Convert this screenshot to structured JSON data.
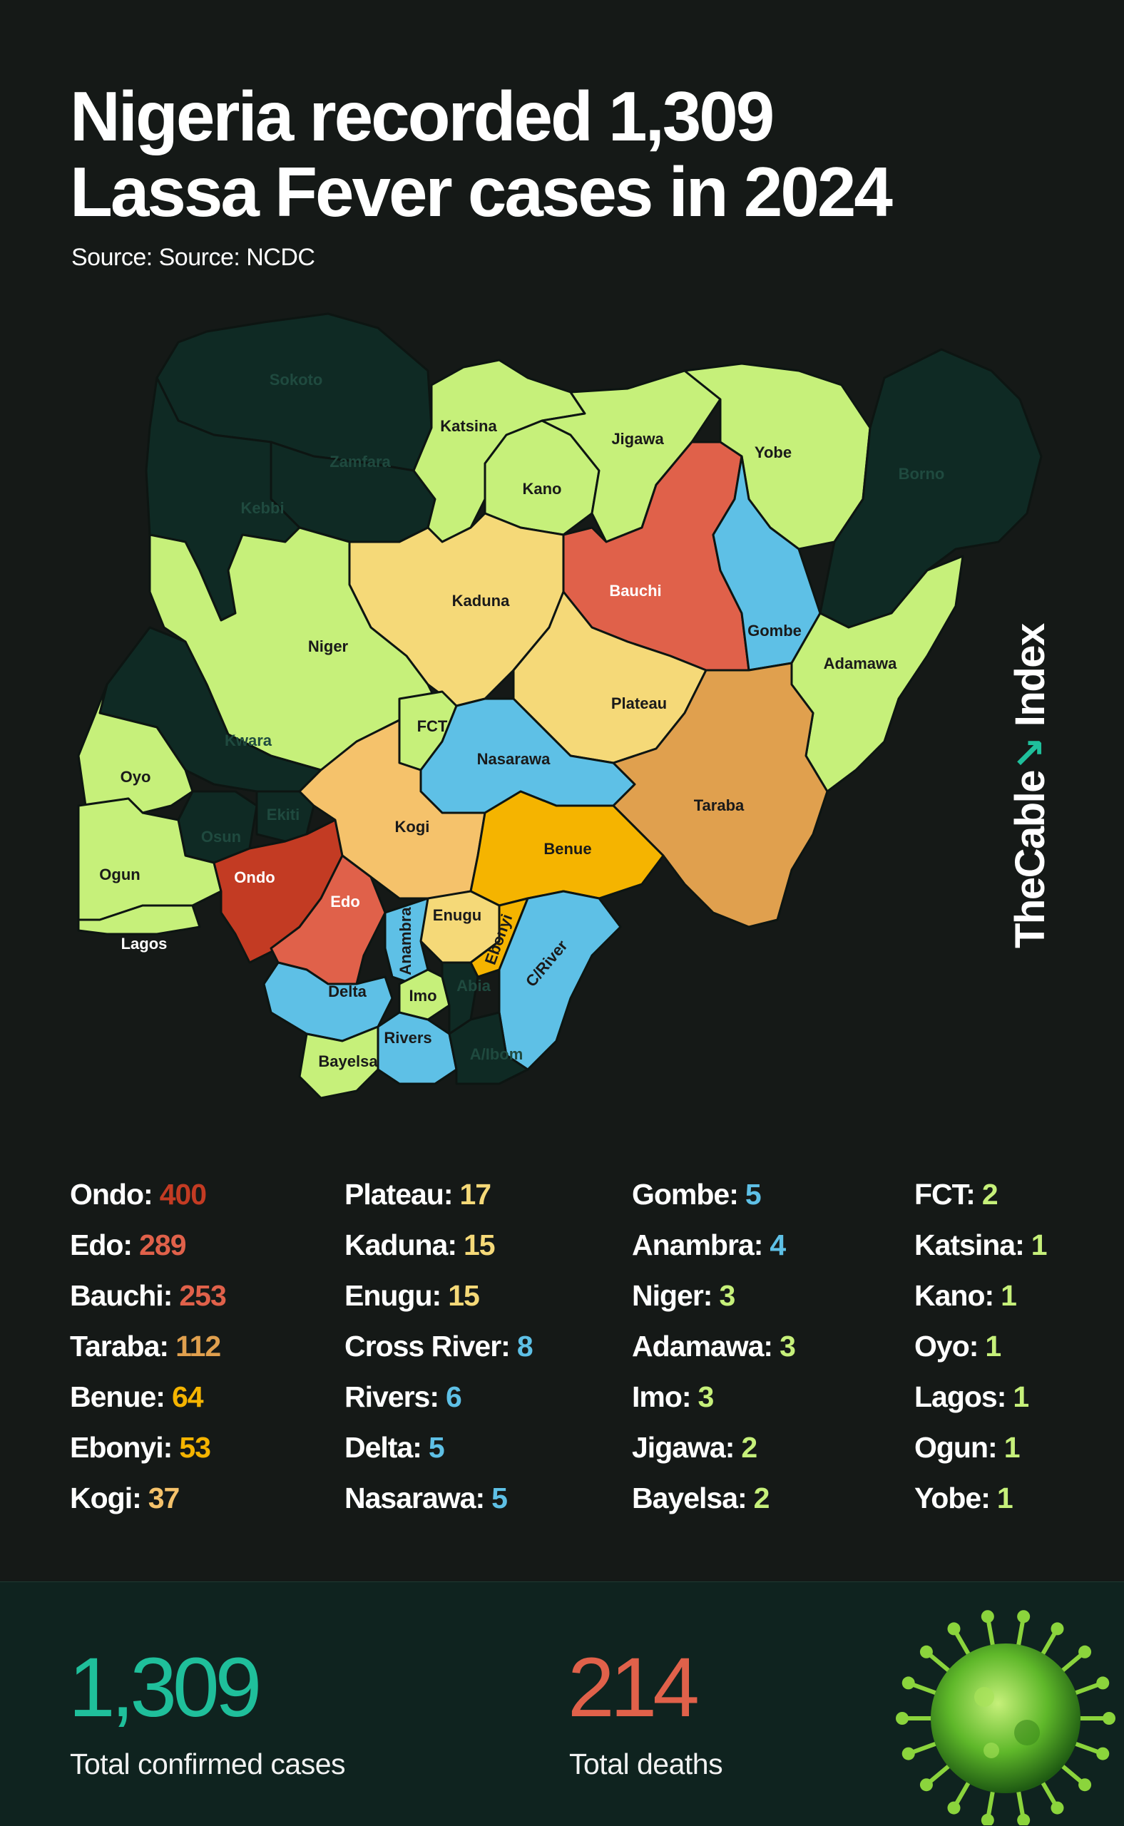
{
  "header": {
    "title_line1": "Nigeria recorded 1,309",
    "title_line2": "Lassa Fever cases in 2024",
    "source": "Source: Source: NCDC"
  },
  "brand": {
    "name": "TheCable",
    "suffix": "Index"
  },
  "colors": {
    "background": "#151917",
    "high": "#c33b23",
    "upper": "#e0614a",
    "orange": "#f5b400",
    "amber": "#e0a04e",
    "yellow": "#f5d978",
    "blue": "#5ec0e6",
    "green": "#c6f07a",
    "zero": "#0f2a24",
    "teal": "#1fbf9b"
  },
  "map": {
    "states": [
      {
        "name": "Sokoto",
        "cases": 0
      },
      {
        "name": "Zamfara",
        "cases": 0
      },
      {
        "name": "Kebbi",
        "cases": 0
      },
      {
        "name": "Borno",
        "cases": 0
      },
      {
        "name": "Katsina",
        "cases": 1
      },
      {
        "name": "Jigawa",
        "cases": 2
      },
      {
        "name": "Yobe",
        "cases": 1
      },
      {
        "name": "Kano",
        "cases": 1
      },
      {
        "name": "Bauchi",
        "cases": 253
      },
      {
        "name": "Kaduna",
        "cases": 15
      },
      {
        "name": "Gombe",
        "cases": 5
      },
      {
        "name": "Niger",
        "cases": 3
      },
      {
        "name": "Adamawa",
        "cases": 3
      },
      {
        "name": "Plateau",
        "cases": 17
      },
      {
        "name": "FCT",
        "cases": 2
      },
      {
        "name": "Kwara",
        "cases": 0
      },
      {
        "name": "Nasarawa",
        "cases": 5
      },
      {
        "name": "Oyo",
        "cases": 1
      },
      {
        "name": "Taraba",
        "cases": 112
      },
      {
        "name": "Kogi",
        "cases": 37
      },
      {
        "name": "Ekiti",
        "cases": 0
      },
      {
        "name": "Osun",
        "cases": 0
      },
      {
        "name": "Benue",
        "cases": 64
      },
      {
        "name": "Ogun",
        "cases": 1
      },
      {
        "name": "Ondo",
        "cases": 400
      },
      {
        "name": "Edo",
        "cases": 289
      },
      {
        "name": "Enugu",
        "cases": 15
      },
      {
        "name": "Anambra",
        "cases": 4
      },
      {
        "name": "Ebonyi",
        "cases": 53
      },
      {
        "name": "C/River",
        "cases": 8
      },
      {
        "name": "Lagos",
        "cases": 1
      },
      {
        "name": "Delta",
        "cases": 5
      },
      {
        "name": "Imo",
        "cases": 3
      },
      {
        "name": "Abia",
        "cases": 0
      },
      {
        "name": "Rivers",
        "cases": 6
      },
      {
        "name": "A/Ibom",
        "cases": 0
      },
      {
        "name": "Bayelsa",
        "cases": 2
      }
    ]
  },
  "cases_list": {
    "columns": [
      [
        {
          "state": "Ondo",
          "value": "400",
          "color": "#c33b23"
        },
        {
          "state": "Edo",
          "value": "289",
          "color": "#e0614a"
        },
        {
          "state": "Bauchi",
          "value": "253",
          "color": "#e0614a"
        },
        {
          "state": "Taraba",
          "value": "112",
          "color": "#e0a04e"
        },
        {
          "state": "Benue",
          "value": "64",
          "color": "#f5b400"
        },
        {
          "state": "Ebonyi",
          "value": "53",
          "color": "#f5b400"
        },
        {
          "state": "Kogi",
          "value": "37",
          "color": "#f5c26b"
        }
      ],
      [
        {
          "state": "Plateau",
          "value": "17",
          "color": "#f5d978"
        },
        {
          "state": "Kaduna",
          "value": "15",
          "color": "#f5d978"
        },
        {
          "state": "Enugu",
          "value": "15",
          "color": "#f5d978"
        },
        {
          "state": "Cross River",
          "value": "8",
          "color": "#5ec0e6"
        },
        {
          "state": "Rivers",
          "value": "6",
          "color": "#5ec0e6"
        },
        {
          "state": "Delta",
          "value": "5",
          "color": "#5ec0e6"
        },
        {
          "state": "Nasarawa",
          "value": "5",
          "color": "#5ec0e6"
        }
      ],
      [
        {
          "state": "Gombe",
          "value": "5",
          "color": "#5ec0e6"
        },
        {
          "state": "Anambra",
          "value": "4",
          "color": "#5ec0e6"
        },
        {
          "state": "Niger",
          "value": "3",
          "color": "#c6f07a"
        },
        {
          "state": "Adamawa",
          "value": "3",
          "color": "#c6f07a"
        },
        {
          "state": "Imo",
          "value": "3",
          "color": "#c6f07a"
        },
        {
          "state": "Jigawa",
          "value": "2",
          "color": "#c6f07a"
        },
        {
          "state": "Bayelsa",
          "value": "2",
          "color": "#c6f07a"
        }
      ],
      [
        {
          "state": "FCT",
          "value": "2",
          "color": "#c6f07a"
        },
        {
          "state": "Katsina",
          "value": "1",
          "color": "#c6f07a"
        },
        {
          "state": "Kano",
          "value": "1",
          "color": "#c6f07a"
        },
        {
          "state": "Oyo",
          "value": "1",
          "color": "#c6f07a"
        },
        {
          "state": "Lagos",
          "value": "1",
          "color": "#c6f07a"
        },
        {
          "state": "Ogun",
          "value": "1",
          "color": "#c6f07a"
        },
        {
          "state": "Yobe",
          "value": "1",
          "color": "#c6f07a"
        }
      ]
    ]
  },
  "stats": {
    "total_cases": "1,309",
    "total_cases_label": "Total confirmed cases",
    "total_deaths": "214",
    "total_deaths_label": "Total deaths"
  }
}
